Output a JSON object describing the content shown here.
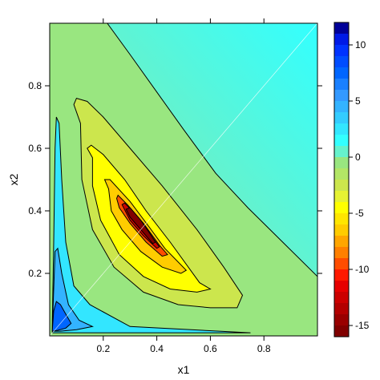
{
  "chart_data": {
    "type": "heatmap",
    "subtype": "filled-contour",
    "title": "",
    "xlabel": "x1",
    "ylabel": "x2",
    "xlim": [
      0,
      1
    ],
    "ylim": [
      0,
      1
    ],
    "x_ticks": [
      0.2,
      0.4,
      0.6,
      0.8
    ],
    "y_ticks": [
      0.2,
      0.4,
      0.6,
      0.8
    ],
    "colorbar": {
      "range": [
        -16,
        12
      ],
      "ticks": [
        10,
        5,
        0,
        -5,
        -10,
        -15
      ],
      "levels": [
        -16,
        -15,
        -14,
        -13,
        -12,
        -11,
        -10,
        -9,
        -8,
        -7,
        -6,
        -5,
        -4,
        -3,
        -2,
        -1,
        0,
        1,
        2,
        3,
        4,
        5,
        6,
        7,
        8,
        9,
        10,
        11,
        12
      ],
      "colors": [
        "#800000",
        "#990000",
        "#b30000",
        "#cc0000",
        "#e60000",
        "#ff1a00",
        "#ff4d00",
        "#ff8000",
        "#ffa600",
        "#ffcc00",
        "#ffe600",
        "#ffff00",
        "#e6f233",
        "#cce64d",
        "#b3e666",
        "#99e680",
        "#66f2cc",
        "#33ffff",
        "#33e6ff",
        "#33ccff",
        "#33b3ff",
        "#3399ff",
        "#1a80ff",
        "#0066ff",
        "#004dff",
        "#0033ff",
        "#001ae6",
        "#000099"
      ]
    },
    "contours": [
      {
        "level": 0,
        "points": [
          [
            0.215,
            1.0
          ],
          [
            0.3,
            0.9
          ],
          [
            0.4,
            0.78
          ],
          [
            0.5,
            0.66
          ],
          [
            0.62,
            0.52
          ],
          [
            0.74,
            0.41
          ],
          [
            0.87,
            0.3
          ],
          [
            1.0,
            0.19
          ]
        ]
      },
      {
        "level": -2,
        "points": [
          [
            0.115,
            0.68
          ],
          [
            0.09,
            0.74
          ],
          [
            0.1,
            0.76
          ],
          [
            0.14,
            0.75
          ],
          [
            0.2,
            0.7
          ],
          [
            0.3,
            0.6
          ],
          [
            0.42,
            0.48
          ],
          [
            0.55,
            0.34
          ],
          [
            0.65,
            0.22
          ],
          [
            0.72,
            0.13
          ],
          [
            0.7,
            0.09
          ],
          [
            0.6,
            0.09
          ],
          [
            0.48,
            0.1
          ],
          [
            0.35,
            0.14
          ],
          [
            0.24,
            0.22
          ],
          [
            0.16,
            0.34
          ],
          [
            0.12,
            0.5
          ],
          [
            0.115,
            0.68
          ]
        ]
      },
      {
        "level": -4,
        "points": [
          [
            0.16,
            0.57
          ],
          [
            0.14,
            0.6
          ],
          [
            0.155,
            0.61
          ],
          [
            0.2,
            0.58
          ],
          [
            0.28,
            0.5
          ],
          [
            0.36,
            0.4
          ],
          [
            0.45,
            0.3
          ],
          [
            0.56,
            0.17
          ],
          [
            0.6,
            0.15
          ],
          [
            0.55,
            0.14
          ],
          [
            0.45,
            0.15
          ],
          [
            0.35,
            0.19
          ],
          [
            0.26,
            0.26
          ],
          [
            0.19,
            0.37
          ],
          [
            0.16,
            0.48
          ],
          [
            0.16,
            0.57
          ]
        ]
      },
      {
        "level": -6,
        "points": [
          [
            0.22,
            0.47
          ],
          [
            0.205,
            0.5
          ],
          [
            0.225,
            0.5
          ],
          [
            0.3,
            0.43
          ],
          [
            0.37,
            0.35
          ],
          [
            0.43,
            0.28
          ],
          [
            0.51,
            0.21
          ],
          [
            0.49,
            0.2
          ],
          [
            0.42,
            0.22
          ],
          [
            0.34,
            0.27
          ],
          [
            0.27,
            0.34
          ],
          [
            0.23,
            0.4
          ],
          [
            0.22,
            0.47
          ]
        ]
      },
      {
        "level": -9,
        "points": [
          [
            0.25,
            0.44
          ],
          [
            0.255,
            0.45
          ],
          [
            0.29,
            0.42
          ],
          [
            0.35,
            0.36
          ],
          [
            0.41,
            0.29
          ],
          [
            0.44,
            0.26
          ],
          [
            0.42,
            0.255
          ],
          [
            0.36,
            0.3
          ],
          [
            0.3,
            0.36
          ],
          [
            0.26,
            0.41
          ],
          [
            0.25,
            0.44
          ]
        ]
      },
      {
        "level": -12,
        "points": [
          [
            0.27,
            0.42
          ],
          [
            0.28,
            0.425
          ],
          [
            0.32,
            0.39
          ],
          [
            0.37,
            0.33
          ],
          [
            0.41,
            0.285
          ],
          [
            0.4,
            0.28
          ],
          [
            0.35,
            0.32
          ],
          [
            0.3,
            0.37
          ],
          [
            0.27,
            0.42
          ]
        ]
      },
      {
        "level": -15,
        "points": [
          [
            0.285,
            0.405
          ],
          [
            0.3,
            0.41
          ],
          [
            0.34,
            0.37
          ],
          [
            0.38,
            0.32
          ],
          [
            0.395,
            0.3
          ],
          [
            0.385,
            0.295
          ],
          [
            0.34,
            0.34
          ],
          [
            0.3,
            0.38
          ],
          [
            0.285,
            0.405
          ]
        ]
      },
      {
        "level": 2,
        "points": [
          [
            0.01,
            0.05
          ],
          [
            0.015,
            0.3
          ],
          [
            0.02,
            0.6
          ],
          [
            0.025,
            0.7
          ],
          [
            0.035,
            0.68
          ],
          [
            0.045,
            0.5
          ],
          [
            0.06,
            0.3
          ],
          [
            0.09,
            0.16
          ],
          [
            0.15,
            0.1
          ],
          [
            0.3,
            0.03
          ],
          [
            0.75,
            0.01
          ],
          [
            0.01,
            0.01
          ]
        ]
      },
      {
        "level": 4,
        "points": [
          [
            0.01,
            0.03
          ],
          [
            0.015,
            0.15
          ],
          [
            0.02,
            0.27
          ],
          [
            0.03,
            0.28
          ],
          [
            0.045,
            0.2
          ],
          [
            0.07,
            0.1
          ],
          [
            0.11,
            0.05
          ],
          [
            0.16,
            0.03
          ],
          [
            0.1,
            0.02
          ],
          [
            0.04,
            0.015
          ],
          [
            0.01,
            0.015
          ]
        ]
      },
      {
        "level": 7,
        "points": [
          [
            0.01,
            0.02
          ],
          [
            0.015,
            0.08
          ],
          [
            0.025,
            0.11
          ],
          [
            0.04,
            0.1
          ],
          [
            0.06,
            0.07
          ],
          [
            0.08,
            0.04
          ],
          [
            0.06,
            0.025
          ],
          [
            0.03,
            0.018
          ],
          [
            0.01,
            0.015
          ]
        ]
      }
    ]
  }
}
